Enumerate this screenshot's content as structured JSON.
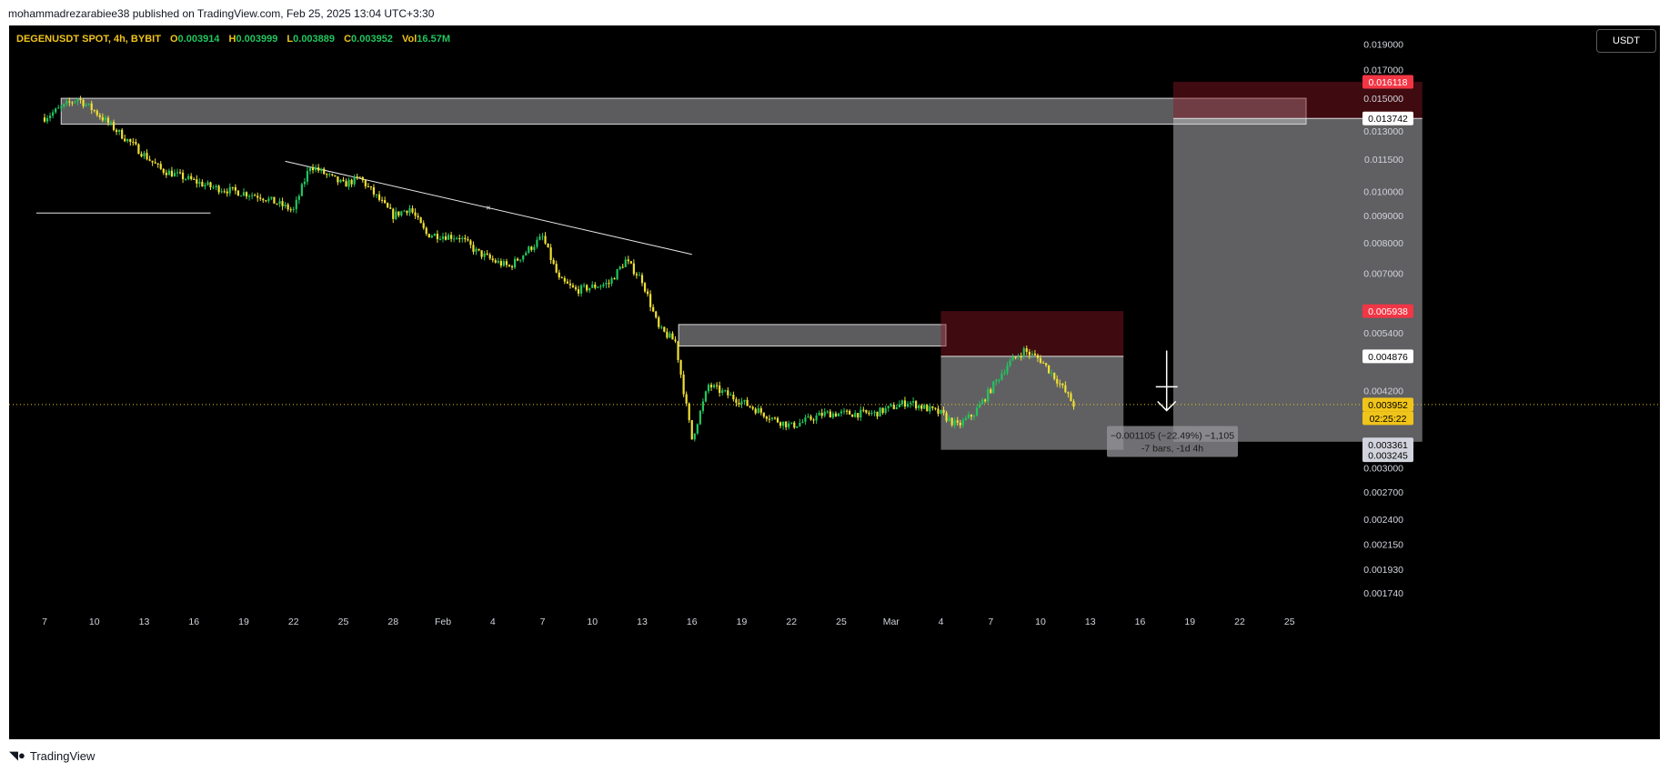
{
  "header": {
    "publisher_line": "mohammadrezarabiee38 published on TradingView.com, Feb 25, 2025 13:04 UTC+3:30"
  },
  "legend": {
    "symbol": "DEGENUSDT SPOT, 4h, BYBIT",
    "open_label": "O",
    "open": "0.003914",
    "high_label": "H",
    "high": "0.003999",
    "low_label": "L",
    "low": "0.003889",
    "close_label": "C",
    "close": "0.003952",
    "vol_label": "Vol",
    "vol": "16.57M"
  },
  "currency_button": "USDT",
  "footer": {
    "brand": "TradingView",
    "logo_icon": "tradingview-logo-icon"
  },
  "measure": {
    "line1": "−0.001105 (−22.49%) −1,105",
    "line2": "-7 bars, -1d 4h"
  },
  "price_badges": [
    {
      "text": "0.016118",
      "bg": "#f23645",
      "fg": "#ffffff"
    },
    {
      "text": "0.013742",
      "bg": "#ffffff",
      "fg": "#000000"
    },
    {
      "text": "0.005938",
      "bg": "#f23645",
      "fg": "#ffffff"
    },
    {
      "text": "0.004876",
      "bg": "#ffffff",
      "fg": "#000000"
    },
    {
      "text": "0.003952",
      "bg": "#f0c419",
      "fg": "#000000"
    },
    {
      "text": "02:25:22",
      "bg": "#f0c419",
      "fg": "#000000"
    },
    {
      "text": "0.003361",
      "bg": "#d1d4dc",
      "fg": "#000000"
    },
    {
      "text": "0.003245",
      "bg": "#d1d4dc",
      "fg": "#000000"
    }
  ],
  "chart_data": {
    "type": "candlestick",
    "symbol": "DEGENUSDT",
    "timeframe": "4h",
    "exchange": "BYBIT",
    "y_scale": "log",
    "y_ticks": [
      "0.019000",
      "0.017000",
      "0.015000",
      "0.013000",
      "0.011500",
      "0.010000",
      "0.009000",
      "0.008000",
      "0.007000",
      "0.005400",
      "0.004200",
      "0.003000",
      "0.002700",
      "0.002400",
      "0.002150",
      "0.001930",
      "0.001740"
    ],
    "x_ticks": [
      "7",
      "10",
      "13",
      "16",
      "19",
      "22",
      "25",
      "28",
      "Feb",
      "4",
      "7",
      "10",
      "13",
      "16",
      "19",
      "22",
      "25",
      "Mar",
      "4",
      "7",
      "10",
      "13",
      "16",
      "19",
      "22",
      "25"
    ],
    "price_path": [
      [
        0,
        0.0138
      ],
      [
        2,
        0.015
      ],
      [
        3,
        0.0142
      ],
      [
        5,
        0.0125
      ],
      [
        7,
        0.011
      ],
      [
        10,
        0.0102
      ],
      [
        13,
        0.0098
      ],
      [
        15,
        0.0092
      ],
      [
        16,
        0.0112
      ],
      [
        18,
        0.0103
      ],
      [
        19,
        0.0106
      ],
      [
        21,
        0.009
      ],
      [
        22,
        0.0093
      ],
      [
        23,
        0.0083
      ],
      [
        25,
        0.0082
      ],
      [
        26,
        0.0077
      ],
      [
        27,
        0.0074
      ],
      [
        28,
        0.0072
      ],
      [
        30,
        0.0082
      ],
      [
        31,
        0.0068
      ],
      [
        32,
        0.0065
      ],
      [
        34,
        0.0067
      ],
      [
        35,
        0.0074
      ],
      [
        36,
        0.0068
      ],
      [
        37,
        0.0055
      ],
      [
        38,
        0.0052
      ],
      [
        39,
        0.0034
      ],
      [
        40,
        0.0043
      ],
      [
        42,
        0.004
      ],
      [
        44,
        0.0037
      ],
      [
        45,
        0.0036
      ],
      [
        47,
        0.0038
      ],
      [
        50,
        0.0038
      ],
      [
        52,
        0.004
      ],
      [
        54,
        0.0038
      ],
      [
        55,
        0.0036
      ],
      [
        56,
        0.0038
      ],
      [
        58,
        0.0047
      ],
      [
        59,
        0.005
      ],
      [
        60,
        0.0048
      ],
      [
        61,
        0.0044
      ],
      [
        62,
        0.003952
      ]
    ],
    "x_ref": {
      "index": 62,
      "label": "25 Feb"
    },
    "current_price": 0.003952,
    "countdown": "02:25:22",
    "levels": {
      "range_top": 0.016118,
      "entry_high": 0.013742,
      "small_stop": 0.005938,
      "small_entry": 0.004876,
      "target_a": 0.003361,
      "target_b": 0.003245
    },
    "horizontal_zones": [
      {
        "from": 0.0134,
        "to": 0.015,
        "x_start": 1.0,
        "x_end": 76
      },
      {
        "from": 0.0051,
        "to": 0.0056,
        "x_start": 38.2,
        "x_end": 54.3
      }
    ],
    "horizontal_ray": {
      "price": 0.0091,
      "x_start": -0.5,
      "x_end": 10
    },
    "trendline": [
      [
        14.5,
        0.0114
      ],
      [
        39,
        0.0076
      ]
    ],
    "short_positions": [
      {
        "x_start": 54,
        "x_end": 65,
        "stop": 0.005938,
        "entry": 0.004876,
        "target": 0.003245
      },
      {
        "x_start": 68,
        "x_end": 83,
        "stop": 0.016118,
        "entry": 0.013742,
        "target": 0.003361
      }
    ],
    "measure_bars": -7,
    "measure_duration": "-1d 4h",
    "measure_change": -0.001105,
    "measure_percent": -22.49,
    "grid": false
  }
}
